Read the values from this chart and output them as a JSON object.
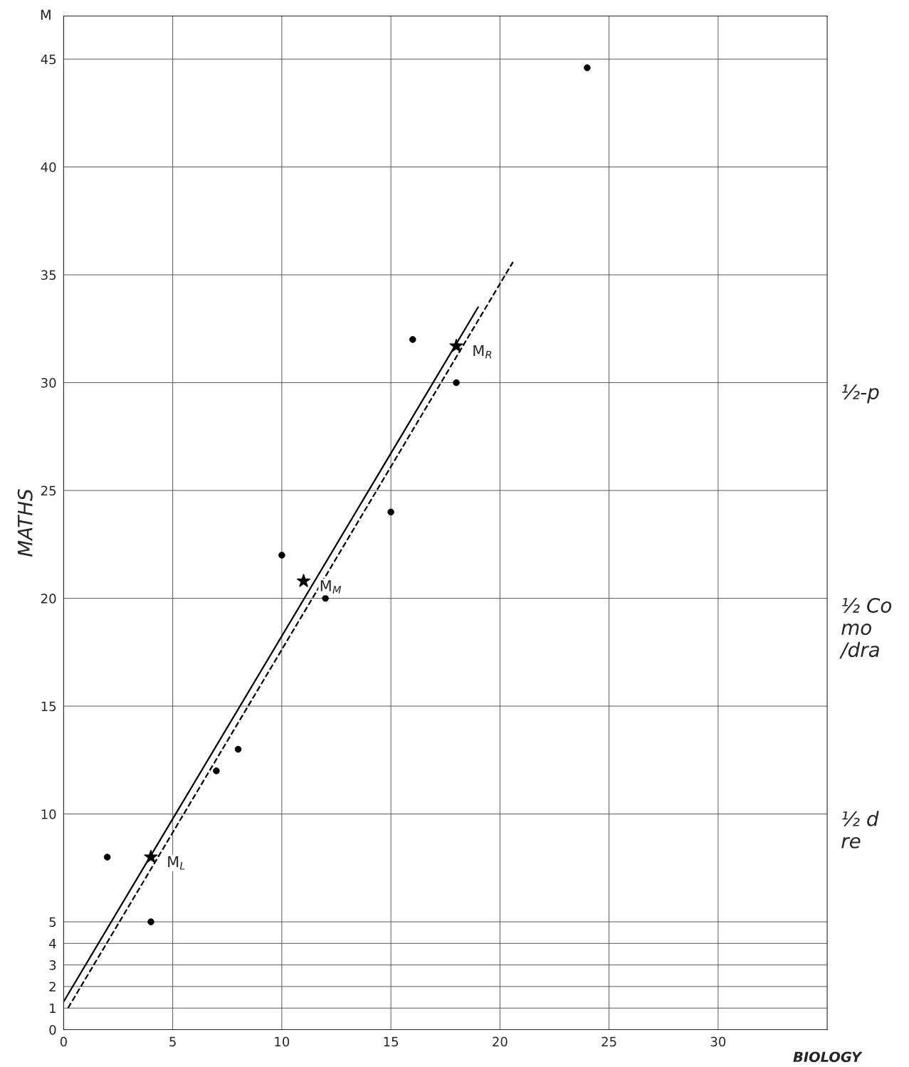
{
  "chart_data": {
    "type": "scatter",
    "xlabel": "BIOLOGY",
    "ylabel": "MATHS",
    "title": "M",
    "xlim": [
      0,
      35
    ],
    "ylim": [
      0,
      47
    ],
    "xticks": [
      0,
      5,
      10,
      15,
      20,
      25,
      30
    ],
    "yticks": [
      0,
      1,
      2,
      3,
      4,
      5,
      10,
      15,
      20,
      25,
      30,
      35,
      40,
      45
    ],
    "grid": true,
    "legend": false,
    "series": [
      {
        "marker": "circle",
        "color": "#000000",
        "x": [
          2,
          4,
          7,
          8,
          10,
          12,
          15,
          16,
          18,
          24
        ],
        "values": [
          8,
          5,
          12,
          13,
          22,
          20,
          24,
          32,
          30,
          44.6
        ]
      },
      {
        "marker": "star",
        "color": "#000000",
        "x": [
          4,
          11,
          18
        ],
        "values": [
          8,
          20.8,
          31.7
        ]
      },
      {
        "type": "line",
        "marker": "none",
        "line_style": "solid",
        "color": "#000000",
        "x": [
          0,
          19
        ],
        "values": [
          1.3,
          33.5
        ]
      },
      {
        "type": "line",
        "marker": "none",
        "line_style": "dashed",
        "color": "#000000",
        "x": [
          0.2,
          20.6
        ],
        "values": [
          1.0,
          35.6
        ]
      }
    ],
    "annotations": [
      {
        "text": "M$_{L}$",
        "x": 4,
        "y": 8
      },
      {
        "text": "M$_{M}$",
        "x": 11,
        "y": 20.8
      },
      {
        "text": "M$_{R}$",
        "x": 18,
        "y": 31.7
      },
      "½-p",
      "½ Co\nmo\n/dra",
      "½ d\nre"
    ]
  }
}
